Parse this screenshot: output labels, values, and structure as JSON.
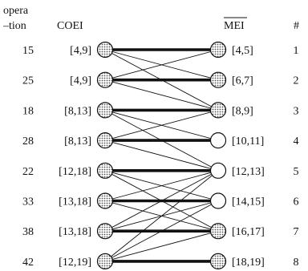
{
  "header": {
    "operation_line1": "opera",
    "operation_line2": "–tion",
    "coei": "COEI",
    "mei": "MEI",
    "index": "#"
  },
  "rows": [
    {
      "operation": "15",
      "coei": "[4,9]",
      "mei": "[4,5]",
      "index": "1",
      "coei_shaded": true,
      "mei_shaded": true
    },
    {
      "operation": "25",
      "coei": "[4,9]",
      "mei": "[6,7]",
      "index": "2",
      "coei_shaded": true,
      "mei_shaded": true
    },
    {
      "operation": "18",
      "coei": "[8,13]",
      "mei": "[8,9]",
      "index": "3",
      "coei_shaded": true,
      "mei_shaded": true
    },
    {
      "operation": "28",
      "coei": "[8,13]",
      "mei": "[10,11]",
      "index": "4",
      "coei_shaded": true,
      "mei_shaded": false
    },
    {
      "operation": "22",
      "coei": "[12,18]",
      "mei": "[12,13]",
      "index": "5",
      "coei_shaded": true,
      "mei_shaded": false
    },
    {
      "operation": "33",
      "coei": "[13,18]",
      "mei": "[14,15]",
      "index": "6",
      "coei_shaded": true,
      "mei_shaded": false
    },
    {
      "operation": "38",
      "coei": "[13,18]",
      "mei": "[16,17]",
      "index": "7",
      "coei_shaded": true,
      "mei_shaded": true
    },
    {
      "operation": "42",
      "coei": "[12,19]",
      "mei": "[18,19]",
      "index": "8",
      "coei_shaded": true,
      "mei_shaded": true
    }
  ],
  "edges": [
    {
      "from": 0,
      "to": 0,
      "bold": true
    },
    {
      "from": 0,
      "to": 1,
      "bold": false
    },
    {
      "from": 0,
      "to": 2,
      "bold": false
    },
    {
      "from": 1,
      "to": 0,
      "bold": false
    },
    {
      "from": 1,
      "to": 1,
      "bold": true
    },
    {
      "from": 1,
      "to": 2,
      "bold": false
    },
    {
      "from": 2,
      "to": 2,
      "bold": true
    },
    {
      "from": 2,
      "to": 3,
      "bold": false
    },
    {
      "from": 2,
      "to": 4,
      "bold": false
    },
    {
      "from": 3,
      "to": 2,
      "bold": false
    },
    {
      "from": 3,
      "to": 3,
      "bold": true
    },
    {
      "from": 3,
      "to": 4,
      "bold": false
    },
    {
      "from": 4,
      "to": 4,
      "bold": true
    },
    {
      "from": 4,
      "to": 5,
      "bold": false
    },
    {
      "from": 4,
      "to": 6,
      "bold": false
    },
    {
      "from": 5,
      "to": 4,
      "bold": false
    },
    {
      "from": 5,
      "to": 5,
      "bold": true
    },
    {
      "from": 5,
      "to": 6,
      "bold": false
    },
    {
      "from": 6,
      "to": 4,
      "bold": false
    },
    {
      "from": 6,
      "to": 5,
      "bold": false
    },
    {
      "from": 6,
      "to": 6,
      "bold": true
    },
    {
      "from": 7,
      "to": 4,
      "bold": false
    },
    {
      "from": 7,
      "to": 5,
      "bold": false
    },
    {
      "from": 7,
      "to": 6,
      "bold": false
    },
    {
      "from": 7,
      "to": 7,
      "bold": true
    }
  ],
  "colors": {
    "shaded_fill": "#c4c4c4",
    "open_fill": "#ffffff",
    "stroke": "#111111"
  }
}
